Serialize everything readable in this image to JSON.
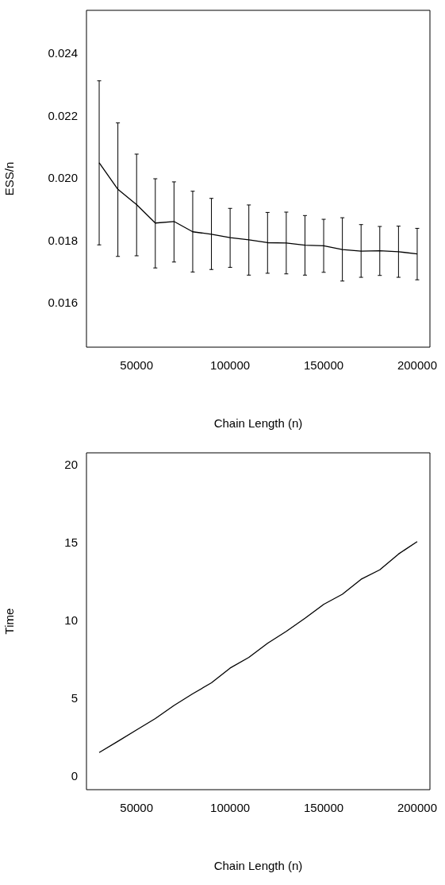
{
  "chart_data": [
    {
      "type": "line",
      "xlabel": "Chain Length (n)",
      "ylabel": "ESS/n",
      "marker": "none",
      "x": [
        30000,
        40000,
        50000,
        60000,
        70000,
        80000,
        90000,
        100000,
        110000,
        120000,
        130000,
        140000,
        150000,
        160000,
        170000,
        180000,
        190000,
        200000
      ],
      "values": [
        0.02051,
        0.01966,
        0.01917,
        0.01858,
        0.01863,
        0.0183,
        0.01822,
        0.01811,
        0.01804,
        0.01795,
        0.01794,
        0.01787,
        0.01785,
        0.01773,
        0.01768,
        0.01769,
        0.01766,
        0.01759
      ],
      "errors": [
        [
          0.01788,
          0.02314
        ],
        [
          0.01751,
          0.02179
        ],
        [
          0.01753,
          0.02079
        ],
        [
          0.01714,
          0.02
        ],
        [
          0.01733,
          0.0199
        ],
        [
          0.01701,
          0.0196
        ],
        [
          0.01709,
          0.01937
        ],
        [
          0.01716,
          0.01905
        ],
        [
          0.01691,
          0.01916
        ],
        [
          0.01697,
          0.01892
        ],
        [
          0.01695,
          0.01893
        ],
        [
          0.01691,
          0.01882
        ],
        [
          0.017,
          0.0187
        ],
        [
          0.01672,
          0.01875
        ],
        [
          0.01684,
          0.01853
        ],
        [
          0.0169,
          0.01847
        ],
        [
          0.01684,
          0.01848
        ],
        [
          0.01676,
          0.01841
        ]
      ],
      "color": "#000000",
      "xlim": [
        23200,
        206800
      ],
      "xticks": [
        50000,
        100000,
        150000,
        200000
      ],
      "ylim": [
        0.0146,
        0.0254
      ],
      "yticks": [
        0.016,
        0.018,
        {
          "value": 0.02,
          "label": "0.020"
        },
        0.022,
        0.024
      ]
    },
    {
      "type": "line",
      "xlabel": "Chain Length (n)",
      "ylabel": "Time",
      "marker": "none",
      "x": [
        30000,
        40000,
        50000,
        60000,
        70000,
        80000,
        90000,
        100000,
        110000,
        120000,
        130000,
        140000,
        150000,
        160000,
        170000,
        180000,
        190000,
        200000
      ],
      "values": [
        1.58,
        2.3,
        3.03,
        3.76,
        4.6,
        5.35,
        6.05,
        7.0,
        7.68,
        8.59,
        9.35,
        10.19,
        11.08,
        11.73,
        12.69,
        13.3,
        14.31,
        15.11
      ],
      "color": "#000000",
      "xlim": [
        23200,
        206800
      ],
      "xticks": [
        50000,
        100000,
        150000,
        200000
      ],
      "ylim": [
        -0.8,
        20.8
      ],
      "yticks": [
        0,
        5,
        10,
        15,
        20
      ]
    }
  ]
}
